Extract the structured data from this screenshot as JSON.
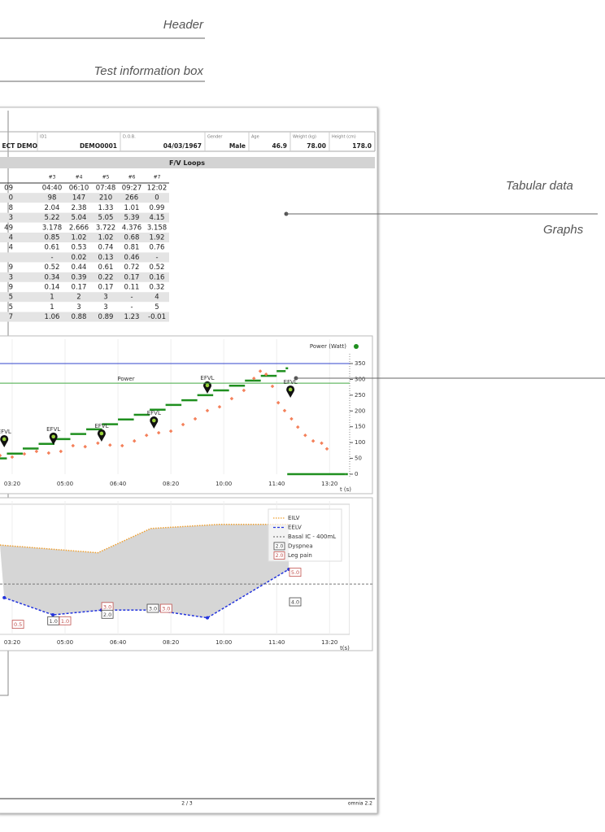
{
  "callouts": [
    "Header",
    "Test information box",
    "Tabular data",
    "Graphs"
  ],
  "patient": {
    "name": "ECT DEMO",
    "fields": [
      {
        "label": "ID1",
        "value": "DEMO0001"
      },
      {
        "label": "D.O.B.",
        "value": "04/03/1967"
      },
      {
        "label": "Gender",
        "value": "Male"
      },
      {
        "label": "Age",
        "value": "46.9"
      },
      {
        "label": "Weight (kg)",
        "value": "78.00"
      },
      {
        "label": "Height (cm)",
        "value": "178.0"
      }
    ]
  },
  "table": {
    "title": "F/V Loops",
    "header": [
      "#3",
      "#4",
      "#5",
      "#6",
      "#7"
    ],
    "rows": [
      [
        "09",
        "04:40",
        "06:10",
        "07:48",
        "09:27",
        "12:02"
      ],
      [
        "0",
        "98",
        "147",
        "210",
        "266",
        "0"
      ],
      [
        "8",
        "2.04",
        "2.38",
        "1.33",
        "1.01",
        "0.99"
      ],
      [
        "3",
        "5.22",
        "5.04",
        "5.05",
        "5.39",
        "4.15"
      ],
      [
        "49",
        "3.178",
        "2.666",
        "3.722",
        "4.376",
        "3.158"
      ],
      [
        "4",
        "0.85",
        "1.02",
        "1.02",
        "0.68",
        "1.92"
      ],
      [
        "4",
        "0.61",
        "0.53",
        "0.74",
        "0.81",
        "0.76"
      ],
      [
        null,
        "-",
        "0.02",
        "0.13",
        "0.46",
        "-"
      ],
      [
        "9",
        "0.52",
        "0.44",
        "0.61",
        "0.72",
        "0.52"
      ],
      [
        "3",
        "0.34",
        "0.39",
        "0.22",
        "0.17",
        "0.16"
      ],
      [
        "9",
        "0.14",
        "0.17",
        "0.17",
        "0.11",
        "0.32"
      ],
      [
        "5",
        "1",
        "2",
        "3",
        "-",
        "4"
      ],
      [
        "5",
        "1",
        "3",
        "3",
        "-",
        "5"
      ],
      [
        "7",
        "1.06",
        "0.88",
        "0.89",
        "1.23",
        "-0.01"
      ]
    ]
  },
  "chart_data": [
    {
      "type": "line",
      "series": [
        {
          "name": "Power (Watt)",
          "color": "#1f8f1f",
          "style": "step",
          "x": [
            160,
            190,
            220,
            250,
            280,
            310,
            340,
            370,
            400,
            430,
            460,
            490,
            520,
            550,
            580,
            610,
            640,
            670,
            700,
            717,
            718,
            720,
            830
          ],
          "values": [
            50,
            65,
            81,
            96,
            111,
            127,
            142,
            158,
            173,
            188,
            204,
            219,
            234,
            250,
            265,
            280,
            296,
            311,
            326,
            335,
            null,
            0,
            0
          ]
        },
        {
          "color": "#f4805a",
          "style": "scatter",
          "x": [
            177,
            200,
            223,
            246,
            269,
            292,
            315,
            338,
            362,
            385,
            408,
            431,
            454,
            477,
            500,
            523,
            546,
            569,
            592,
            615,
            638,
            657,
            669,
            680,
            692,
            703,
            715,
            728,
            740,
            754,
            769,
            785,
            795
          ],
          "values": [
            59,
            54,
            64,
            72,
            67,
            72,
            90,
            87,
            98,
            92,
            90,
            105,
            123,
            131,
            136,
            157,
            175,
            201,
            213,
            239,
            265,
            303,
            326,
            316,
            278,
            226,
            201,
            175,
            149,
            123,
            105,
            98,
            80
          ]
        }
      ],
      "reference_lines": [
        {
          "value": 350,
          "color": "#3344cc"
        },
        {
          "value": 288,
          "color": "#44aa44",
          "label": "Power"
        }
      ],
      "annotations": [
        {
          "label": "EFVL",
          "x": 185,
          "y": 85
        },
        {
          "label": "EFVL",
          "x": 278,
          "y": 93
        },
        {
          "label": "EFVL",
          "x": 369,
          "y": 103
        },
        {
          "label": "EFVL",
          "x": 468,
          "y": 144
        },
        {
          "label": "EFVL",
          "x": 569,
          "y": 255
        },
        {
          "label": "EFVL",
          "x": 726,
          "y": 242
        }
      ],
      "xlim": [
        177,
        838
      ],
      "ylim": [
        0,
        350
      ],
      "xticks": [
        {
          "value": 200,
          "label": "03:20"
        },
        {
          "value": 300,
          "label": "05:00"
        },
        {
          "value": 400,
          "label": "06:40"
        },
        {
          "value": 500,
          "label": "08:20"
        },
        {
          "value": 600,
          "label": "10:00"
        },
        {
          "value": 700,
          "label": "11:40"
        },
        {
          "value": 800,
          "label": "13:20"
        }
      ],
      "yticks": [
        0,
        50,
        100,
        150,
        200,
        250,
        300,
        350
      ],
      "xlabel": "t (s)",
      "legend_position": "top right"
    },
    {
      "type": "area",
      "series": [
        {
          "name": "EILV",
          "color": "#f0a030",
          "dash": "dotted",
          "x": [
            177,
            362,
            462,
            592,
            723
          ],
          "values": [
            2.91,
            2.78,
            3.19,
            3.26,
            3.26
          ]
        },
        {
          "name": "EELV",
          "color": "#2233dd",
          "dash": "dashed",
          "markers": true,
          "x": [
            185,
            277,
            369,
            469,
            569,
            723
          ],
          "values": [
            2.02,
            1.73,
            1.81,
            1.81,
            1.68,
            2.5
          ]
        }
      ],
      "fill_color": "#d6d6d6",
      "reference_lines": [
        {
          "name": "Basal IC - 400mL",
          "value": 2.25,
          "color": "#777"
        }
      ],
      "scores": [
        {
          "name": "Dyspnea",
          "sample": "2.0",
          "color": "#444"
        },
        {
          "name": "Leg pain",
          "sample": "2.0",
          "color": "#c0504d"
        }
      ],
      "annotations": [
        {
          "label": "0.5",
          "score": 1,
          "x": 211,
          "y": 1.57
        },
        {
          "label": "1.0",
          "score": 0,
          "x": 278,
          "y": 1.63
        },
        {
          "label": "1.0",
          "score": 1,
          "x": 300,
          "y": 1.63
        },
        {
          "label": "3.0",
          "score": 1,
          "x": 380,
          "y": 1.87
        },
        {
          "label": "2.0",
          "score": 0,
          "x": 380,
          "y": 1.74
        },
        {
          "label": "3.0",
          "score": 0,
          "x": 466,
          "y": 1.84
        },
        {
          "label": "3.0",
          "score": 1,
          "x": 491,
          "y": 1.84
        },
        {
          "label": "5.0",
          "score": 1,
          "x": 735,
          "y": 2.45
        },
        {
          "label": "4.0",
          "score": 0,
          "x": 735,
          "y": 1.95
        }
      ],
      "xlim": [
        177,
        838
      ],
      "ylim": [
        1.4,
        3.6
      ],
      "xticks": [
        {
          "value": 200,
          "label": "03:20"
        },
        {
          "value": 300,
          "label": "05:00"
        },
        {
          "value": 400,
          "label": "06:40"
        },
        {
          "value": 500,
          "label": "08:20"
        },
        {
          "value": 600,
          "label": "10:00"
        },
        {
          "value": 700,
          "label": "11:40"
        },
        {
          "value": 800,
          "label": "13:20"
        }
      ],
      "xlabel": "t(s)",
      "legend_position": "top right"
    }
  ],
  "footer": {
    "page": "2 / 3",
    "app": "omnia 2.2"
  }
}
